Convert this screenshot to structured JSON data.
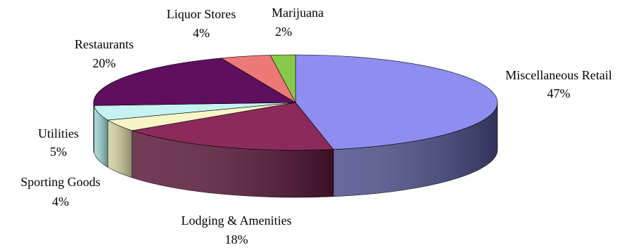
{
  "chart_data": {
    "type": "pie",
    "style": "3d",
    "title": "",
    "legend": "none",
    "slices": [
      {
        "label": "Miscellaneous Retail",
        "value": 47,
        "display": "47%",
        "color": "#8e8ef0",
        "side": "#4d4d8c"
      },
      {
        "label": "Lodging & Amenities",
        "value": 18,
        "display": "18%",
        "color": "#8c2a5c",
        "side": "#5c1838"
      },
      {
        "label": "Sporting Goods",
        "value": 4,
        "display": "4%",
        "color": "#f5f5c6",
        "side": "#d2d2a0"
      },
      {
        "label": "Utilities",
        "value": 5,
        "display": "5%",
        "color": "#c6f2f2",
        "side": "#9fd4d4"
      },
      {
        "label": "Restaurants",
        "value": 20,
        "display": "20%",
        "color": "#5e0f5e",
        "side": "#3c0a3c"
      },
      {
        "label": "Liquor Stores",
        "value": 4,
        "display": "4%",
        "color": "#ee7878",
        "side": "#b85555"
      },
      {
        "label": "Marijuana",
        "value": 2,
        "display": "2%",
        "color": "#88c84a",
        "side": "#5f9434"
      }
    ]
  }
}
